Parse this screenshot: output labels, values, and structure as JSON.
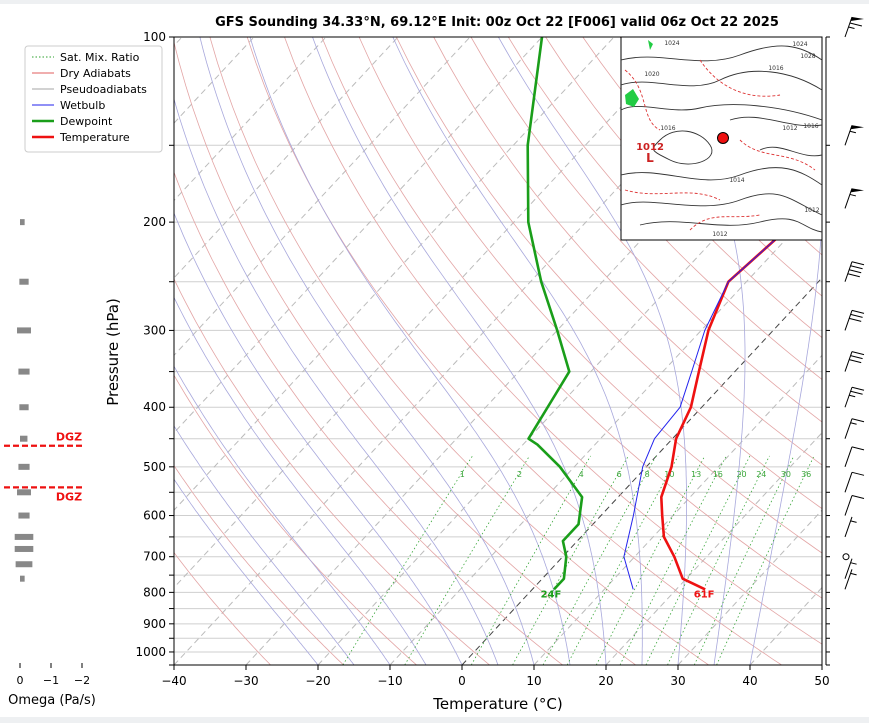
{
  "chart_data": {
    "type": "skew-t",
    "title": "GFS Sounding 34.33°N, 69.12°E Init: 00z Oct 22 [F006] valid 06z Oct 22 2025",
    "xlabel": "Temperature (°C)",
    "ylabel": "Pressure (hPa)",
    "xlim": [
      -40,
      50
    ],
    "ylim": [
      1050,
      100
    ],
    "y_scale": "log",
    "x_ticks": [
      -40,
      -30,
      -20,
      -10,
      0,
      10,
      20,
      30,
      40,
      50
    ],
    "y_ticks": [
      100,
      200,
      300,
      400,
      500,
      600,
      700,
      800,
      900,
      1000
    ],
    "legend": {
      "position": "top-left",
      "entries": [
        {
          "label": "Sat. Mix. Ratio",
          "color": "#2ca02c",
          "style": "dotted"
        },
        {
          "label": "Dry Adiabats",
          "color": "#d62728",
          "style": "solid-thin"
        },
        {
          "label": "Pseudoadiabats",
          "color": "#888888",
          "style": "solid-thin"
        },
        {
          "label": "Wetbulb",
          "color": "#2222ee",
          "style": "solid"
        },
        {
          "label": "Dewpoint",
          "color": "#1a9e1a",
          "style": "solid-thick"
        },
        {
          "label": "Temperature",
          "color": "#ee1111",
          "style": "solid-thick"
        }
      ]
    },
    "mixing_ratio_labels": [
      "1",
      "2",
      "4",
      "6",
      "8",
      "10",
      "13",
      "16",
      "20",
      "24",
      "30",
      "36"
    ],
    "mixing_ratio_values": [
      1,
      2,
      4,
      6,
      8,
      10,
      13,
      16,
      20,
      24,
      30,
      36
    ],
    "series": [
      {
        "name": "Temperature",
        "color": "#ee1111",
        "points": [
          [
            791,
            24
          ],
          [
            760,
            19.5
          ],
          [
            700,
            15.5
          ],
          [
            650,
            11.5
          ],
          [
            600,
            8.5
          ],
          [
            560,
            6
          ],
          [
            500,
            3.5
          ],
          [
            450,
            0.5
          ],
          [
            400,
            -1.5
          ],
          [
            350,
            -5
          ],
          [
            300,
            -9
          ],
          [
            250,
            -12.5
          ],
          [
            200,
            -11
          ],
          [
            150,
            -9.5
          ],
          [
            100,
            -5
          ]
        ]
      },
      {
        "name": "Wetbulb",
        "color": "#2222ee",
        "points": [
          [
            791,
            14
          ],
          [
            700,
            8.5
          ],
          [
            600,
            4.5
          ],
          [
            500,
            -0.5
          ],
          [
            450,
            -2.5
          ],
          [
            400,
            -3
          ],
          [
            350,
            -6
          ],
          [
            300,
            -9.5
          ],
          [
            250,
            -12.5
          ],
          [
            200,
            -11
          ],
          [
            150,
            -9.5
          ],
          [
            100,
            -5
          ]
        ]
      },
      {
        "name": "Dewpoint",
        "color": "#1a9e1a",
        "points": [
          [
            791,
            3
          ],
          [
            760,
            3
          ],
          [
            700,
            0.5
          ],
          [
            660,
            -2
          ],
          [
            620,
            -2
          ],
          [
            560,
            -5
          ],
          [
            500,
            -12
          ],
          [
            460,
            -18
          ],
          [
            450,
            -20
          ],
          [
            380,
            -22
          ],
          [
            350,
            -23
          ],
          [
            300,
            -30
          ],
          [
            250,
            -38.5
          ],
          [
            200,
            -48
          ],
          [
            150,
            -58
          ],
          [
            100,
            -70
          ]
        ]
      }
    ],
    "surface_labels": {
      "dewpoint": "24F",
      "temperature": "61F"
    },
    "omega": {
      "xlabel": "Omega (Pa/s)",
      "ticks": [
        "0",
        "−1",
        "−2"
      ],
      "tick_values": [
        0,
        -1,
        -2
      ],
      "bars": [
        {
          "p": 200,
          "omega": -0.05
        },
        {
          "p": 250,
          "omega": -0.1
        },
        {
          "p": 300,
          "omega": -0.15
        },
        {
          "p": 350,
          "omega": -0.12
        },
        {
          "p": 400,
          "omega": -0.1
        },
        {
          "p": 450,
          "omega": -0.08
        },
        {
          "p": 500,
          "omega": -0.12
        },
        {
          "p": 550,
          "omega": -0.15
        },
        {
          "p": 600,
          "omega": -0.12
        },
        {
          "p": 650,
          "omega": -0.2
        },
        {
          "p": 680,
          "omega": -0.2
        },
        {
          "p": 720,
          "omega": -0.18
        },
        {
          "p": 760,
          "omega": -0.05
        }
      ],
      "dgz_label": "DGZ",
      "dgz_levels": [
        462,
        540
      ],
      "dgz_color": "#ee1111"
    },
    "wind_barbs": [
      {
        "p": 100,
        "speed_kt": 65
      },
      {
        "p": 150,
        "speed_kt": 55
      },
      {
        "p": 190,
        "speed_kt": 55
      },
      {
        "p": 250,
        "speed_kt": 40
      },
      {
        "p": 300,
        "speed_kt": 30
      },
      {
        "p": 350,
        "speed_kt": 30
      },
      {
        "p": 400,
        "speed_kt": 25
      },
      {
        "p": 450,
        "speed_kt": 15
      },
      {
        "p": 500,
        "speed_kt": 10
      },
      {
        "p": 550,
        "speed_kt": 10
      },
      {
        "p": 600,
        "speed_kt": 10
      },
      {
        "p": 650,
        "speed_kt": 5
      },
      {
        "p": 700,
        "speed_kt": 0
      },
      {
        "p": 760,
        "speed_kt": 5
      },
      {
        "p": 791,
        "speed_kt": 5
      }
    ]
  },
  "inset_map": {
    "labels": [
      "1024",
      "1020",
      "1016",
      "1016",
      "1012",
      "1014",
      "1012",
      "1016",
      "1012",
      "1024",
      "1028"
    ],
    "low_center_label": "L",
    "low_center_pressure": "1012"
  }
}
